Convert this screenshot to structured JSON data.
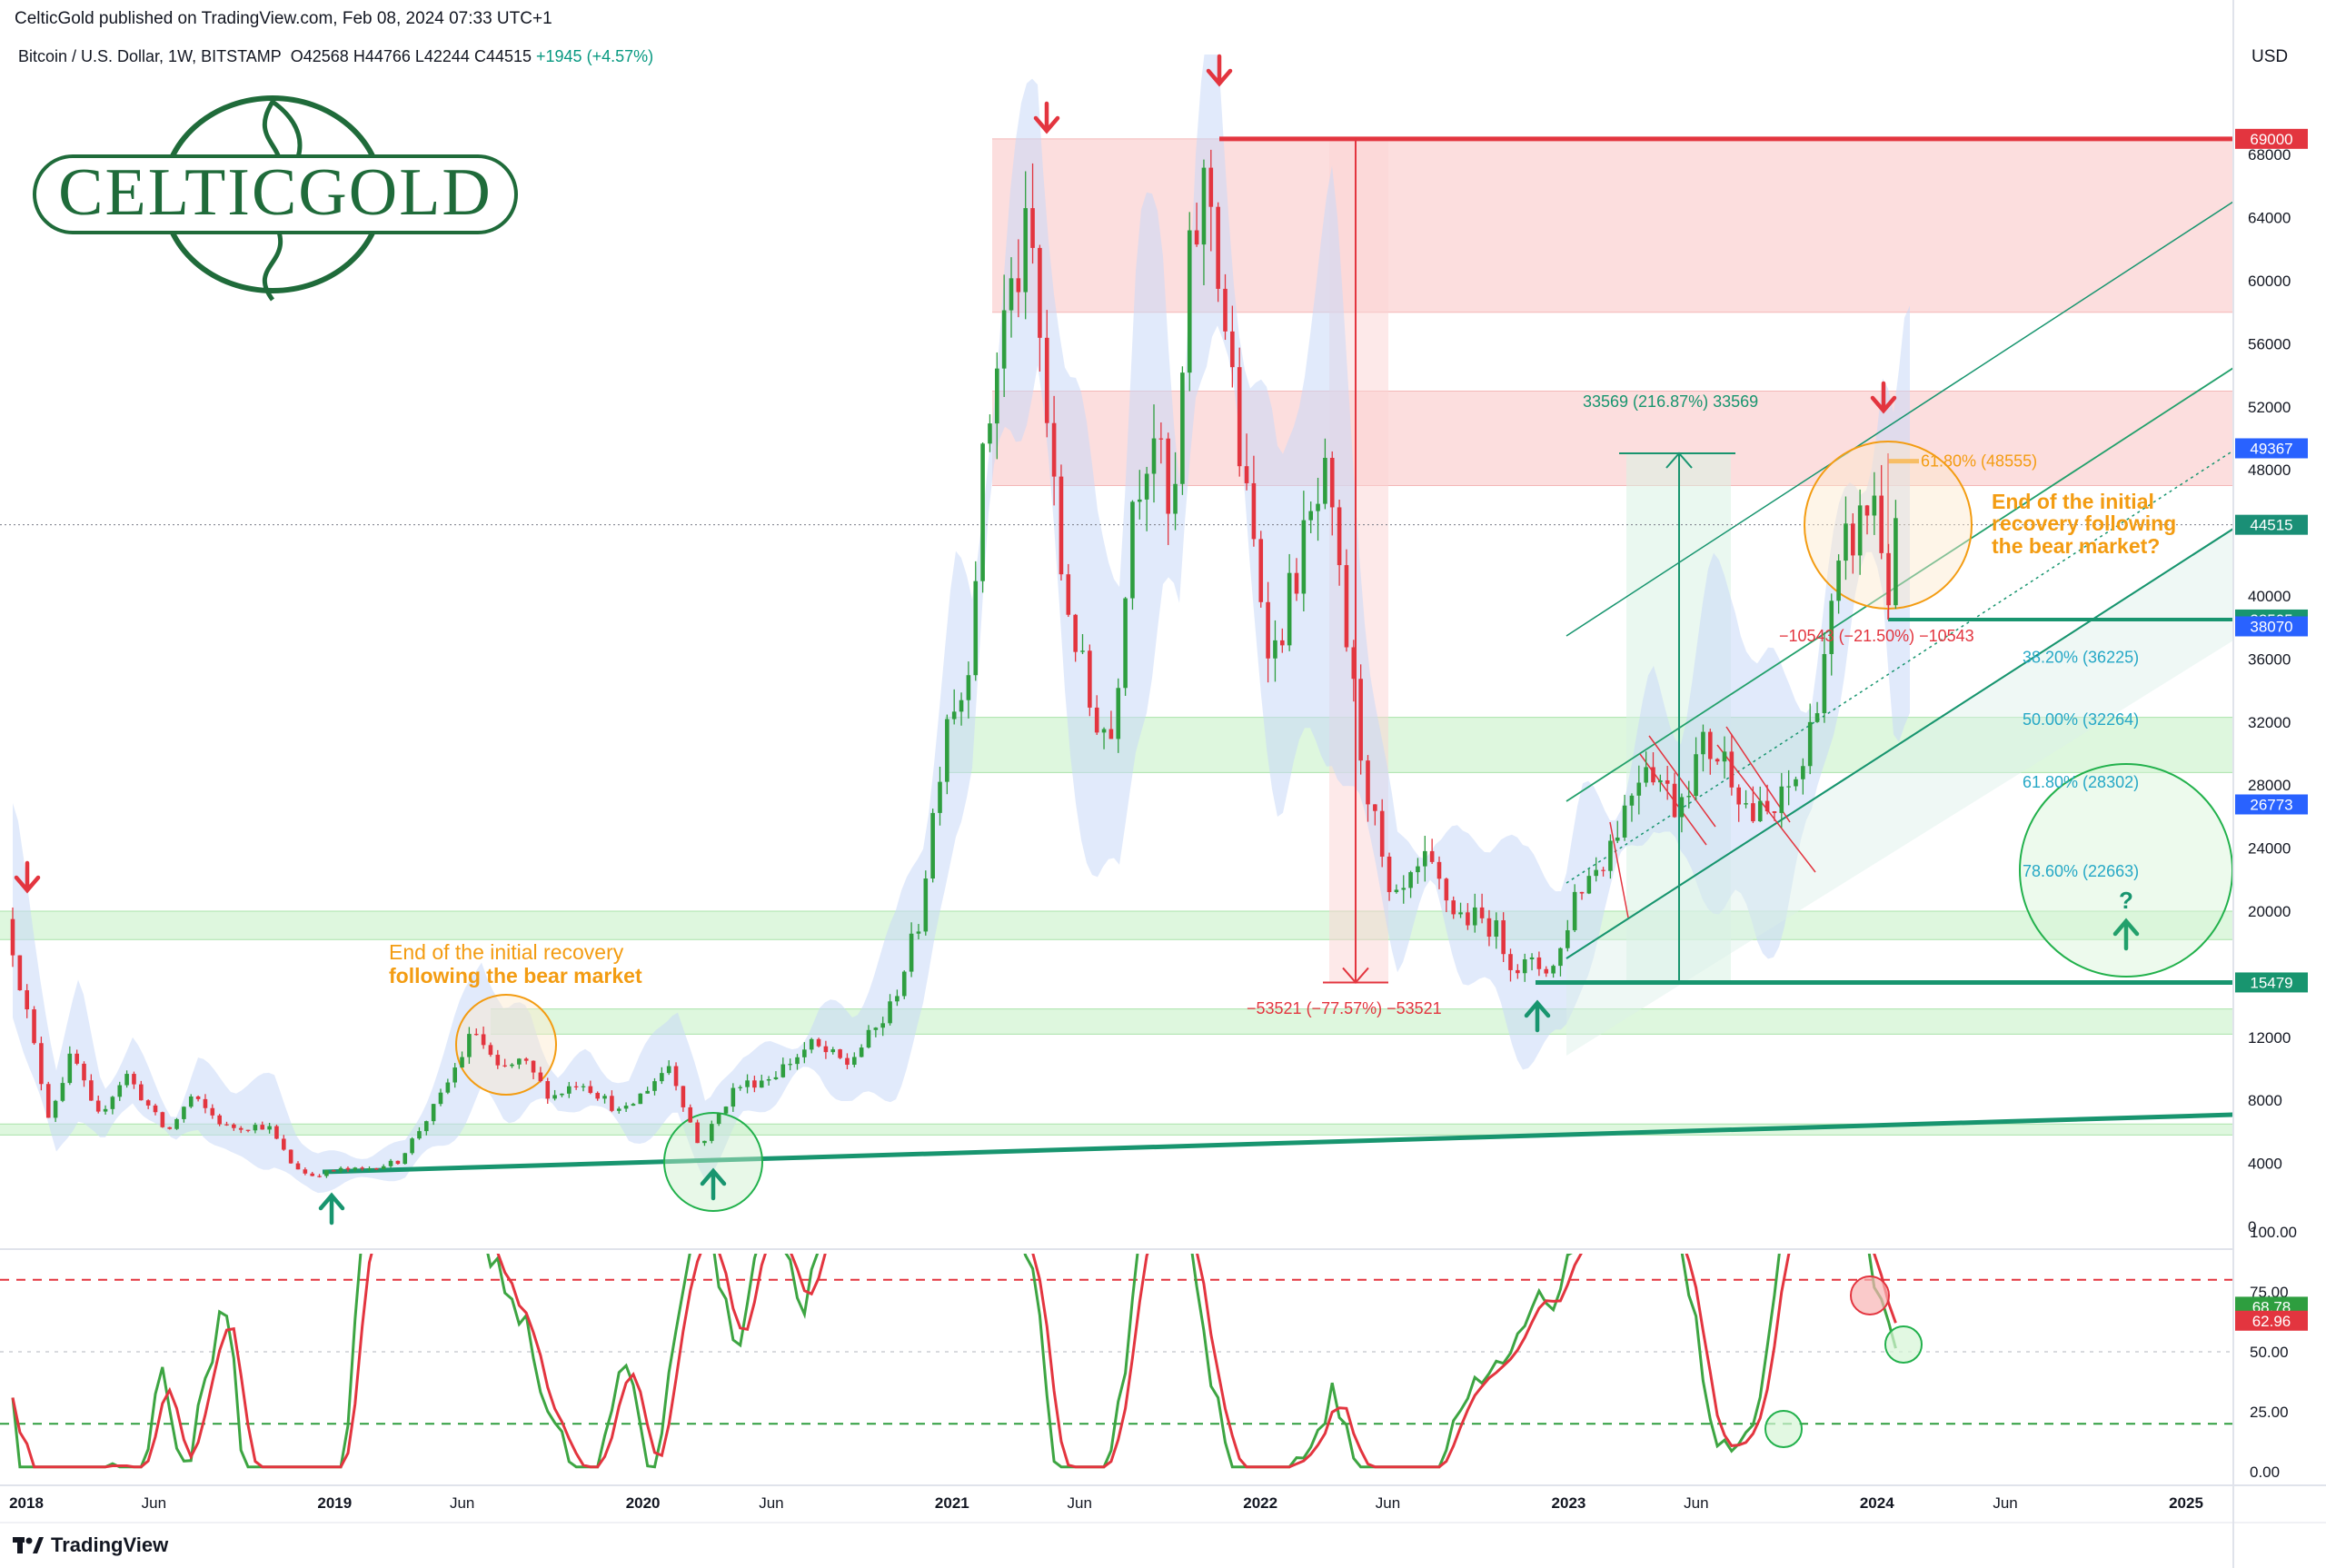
{
  "header": {
    "published": "CelticGold published on TradingView.com, Feb 08, 2024 07:33 UTC+1"
  },
  "symbol": {
    "name": "Bitcoin / U.S. Dollar, 1W, BITSTAMP",
    "ohlc": "O42568 H44766 L42244 C44515",
    "change": "+1945 (+4.57%)"
  },
  "currency": "USD",
  "logo_text": "CELTICGOLD",
  "footer_brand": "TradingView",
  "colors": {
    "up": "#2e9e3f",
    "down": "#e3353f",
    "teal": "#18956f",
    "orange": "#f39c12",
    "blue_band": "#c9d8f8",
    "red_zone": "#fbd3d3",
    "green_zone": "#d6f5d6"
  },
  "chart_data": [
    {
      "type": "candlestick",
      "title": "Bitcoin / U.S. Dollar, 1W, BITSTAMP",
      "y_axis_ticks": [
        0,
        4000,
        8000,
        12000,
        16000,
        20000,
        24000,
        28000,
        32000,
        36000,
        40000,
        44000,
        48000,
        52000,
        56000,
        60000,
        64000,
        68000
      ],
      "y_axis_labels": [
        "0",
        "4000",
        "8000",
        "12000",
        "",
        "20000",
        "24000",
        "28000",
        "32000",
        "36000",
        "40000",
        "",
        "48000",
        "52000",
        "56000",
        "60000",
        "64000",
        "68000"
      ],
      "x_axis_labels": [
        "2018",
        "Jun",
        "2019",
        "Jun",
        "2020",
        "Jun",
        "2021",
        "Jun",
        "2022",
        "Jun",
        "2023",
        "Jun",
        "2024",
        "Jun",
        "2025"
      ],
      "x_axis_dates": [
        "2018-01-01",
        "2018-06-01",
        "2019-01-01",
        "2019-06-01",
        "2020-01-01",
        "2020-06-01",
        "2021-01-01",
        "2021-06-01",
        "2022-01-01",
        "2022-06-01",
        "2023-01-01",
        "2023-06-01",
        "2024-01-01",
        "2024-06-01",
        "2025-01-01"
      ],
      "price_path": [
        [
          "2017-12-18",
          19500
        ],
        [
          "2018-01-08",
          14000
        ],
        [
          "2018-02-05",
          7000
        ],
        [
          "2018-03-05",
          11000
        ],
        [
          "2018-04-02",
          6800
        ],
        [
          "2018-05-07",
          9700
        ],
        [
          "2018-06-25",
          5900
        ],
        [
          "2018-07-23",
          8200
        ],
        [
          "2018-09-03",
          6300
        ],
        [
          "2018-10-22",
          6400
        ],
        [
          "2018-11-19",
          4000
        ],
        [
          "2018-12-10",
          3200
        ],
        [
          "2019-01-14",
          3600
        ],
        [
          "2019-02-11",
          3600
        ],
        [
          "2019-03-25",
          4100
        ],
        [
          "2019-05-13",
          8000
        ],
        [
          "2019-06-24",
          12500
        ],
        [
          "2019-07-22",
          9800
        ],
        [
          "2019-08-19",
          10500
        ],
        [
          "2019-09-23",
          8200
        ],
        [
          "2019-10-28",
          9300
        ],
        [
          "2019-12-16",
          7100
        ],
        [
          "2020-02-10",
          10300
        ],
        [
          "2020-03-16",
          5000
        ],
        [
          "2020-04-27",
          8800
        ],
        [
          "2020-06-08",
          9500
        ],
        [
          "2020-07-27",
          11500
        ],
        [
          "2020-09-07",
          10300
        ],
        [
          "2020-10-26",
          13500
        ],
        [
          "2020-11-30",
          19000
        ],
        [
          "2021-01-04",
          33000
        ],
        [
          "2021-01-25",
          34000
        ],
        [
          "2021-02-15",
          48000
        ],
        [
          "2021-03-08",
          57000
        ],
        [
          "2021-04-12",
          63000
        ],
        [
          "2021-05-17",
          42000
        ],
        [
          "2021-06-21",
          33000
        ],
        [
          "2021-07-19",
          31000
        ],
        [
          "2021-08-09",
          46000
        ],
        [
          "2021-09-06",
          51000
        ],
        [
          "2021-09-27",
          43000
        ],
        [
          "2021-10-18",
          61000
        ],
        [
          "2021-11-08",
          67000
        ],
        [
          "2021-11-29",
          57000
        ],
        [
          "2021-12-20",
          47000
        ],
        [
          "2022-01-24",
          36000
        ],
        [
          "2022-02-28",
          43000
        ],
        [
          "2022-03-28",
          47000
        ],
        [
          "2022-05-09",
          30000
        ],
        [
          "2022-06-13",
          20000
        ],
        [
          "2022-07-25",
          23000
        ],
        [
          "2022-08-29",
          19800
        ],
        [
          "2022-10-10",
          19200
        ],
        [
          "2022-11-07",
          16500
        ],
        [
          "2022-12-26",
          16500
        ],
        [
          "2023-01-16",
          21000
        ],
        [
          "2023-02-20",
          23500
        ],
        [
          "2023-03-13",
          26000
        ],
        [
          "2023-04-10",
          30000
        ],
        [
          "2023-05-15",
          26800
        ],
        [
          "2023-06-19",
          30500
        ],
        [
          "2023-07-17",
          29500
        ],
        [
          "2023-08-14",
          26000
        ],
        [
          "2023-09-11",
          26200
        ],
        [
          "2023-10-16",
          29500
        ],
        [
          "2023-11-06",
          36000
        ],
        [
          "2023-12-04",
          43000
        ],
        [
          "2024-01-08",
          46500
        ],
        [
          "2024-01-22",
          40000
        ],
        [
          "2024-02-05",
          44515
        ]
      ],
      "price_labels": [
        {
          "text": "69000",
          "value": 69000,
          "color": "#e3353f"
        },
        {
          "text": "49367",
          "value": 49367,
          "color": "#2962ff"
        },
        {
          "text": "44515",
          "value": 44515,
          "color": "#1a8f76"
        },
        {
          "text": "38505",
          "value": 38505,
          "color": "#18956f"
        },
        {
          "text": "38070",
          "value": 38070,
          "color": "#2962ff"
        },
        {
          "text": "26773",
          "value": 26773,
          "color": "#2962ff"
        },
        {
          "text": "15479",
          "value": 15479,
          "color": "#18956f"
        }
      ],
      "zones": [
        {
          "kind": "resistance",
          "from": 58000,
          "to": 69000
        },
        {
          "kind": "resistance",
          "from": 47000,
          "to": 53000
        },
        {
          "kind": "support",
          "from": 28800,
          "to": 32300
        },
        {
          "kind": "support",
          "from": 18200,
          "to": 20000
        },
        {
          "kind": "support",
          "from": 12200,
          "to": 13800
        },
        {
          "kind": "support",
          "from": 5800,
          "to": 6500
        }
      ],
      "fibonacci": [
        {
          "label": "61.80% (48555)",
          "value": 48555
        },
        {
          "label": "38.20% (36225)",
          "value": 36225
        },
        {
          "label": "50.00% (32264)",
          "value": 32264
        },
        {
          "label": "61.80% (28302)",
          "value": 28302
        },
        {
          "label": "78.60% (22663)",
          "value": 22663
        }
      ],
      "measurements": [
        {
          "label": "33569 (216.87%) 33569",
          "from": 15479,
          "to": 49048
        },
        {
          "label": "−53521 (−77.57%) −53521",
          "from": 69000,
          "to": 15479
        },
        {
          "label": "−10543 (−21.50%) −10543",
          "from": 49048,
          "to": 38505
        }
      ],
      "annotations": [
        {
          "text_lines": [
            "End of the initial recovery",
            "following the bear market"
          ]
        },
        {
          "text_lines": [
            "End of the initial",
            "recovery following",
            "the bear market?"
          ]
        },
        {
          "text": "?"
        }
      ]
    },
    {
      "type": "line",
      "title": "",
      "y_axis_ticks": [
        0,
        25,
        50,
        75,
        100
      ],
      "y_axis_labels": [
        "0.00",
        "25.00",
        "50.00",
        "75.00",
        "100.00"
      ],
      "levels": [
        20,
        80
      ],
      "current": [
        {
          "text": "68.78",
          "value": 68.78,
          "color": "#2e9e3f"
        },
        {
          "text": "62.96",
          "value": 62.96,
          "color": "#e3353f"
        }
      ]
    }
  ]
}
